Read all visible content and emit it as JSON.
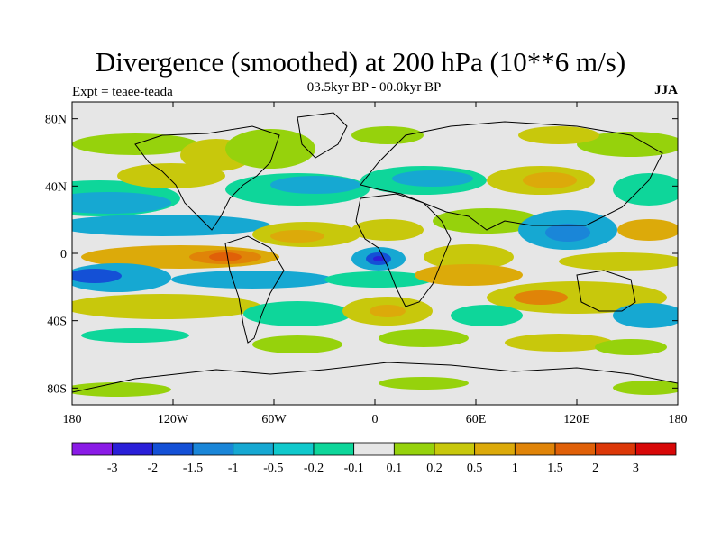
{
  "title": "Divergence (smoothed) at 200 hPa (10**6 m/s)",
  "subtitle": "03.5kyr BP - 00.0kyr BP",
  "experiment": "Expt = teaee-teada",
  "season": "JJA",
  "map": {
    "lat_labels": [
      "80N",
      "40N",
      "0",
      "40S",
      "80S"
    ],
    "lon_labels": [
      "180",
      "120W",
      "60W",
      "0",
      "60E",
      "120E",
      "180"
    ],
    "background_color": "#e6e6e6"
  },
  "colorbar": {
    "labels": [
      "-3",
      "-2",
      "-1.5",
      "-1",
      "-0.5",
      "-0.2",
      "-0.1",
      "0.1",
      "0.2",
      "0.5",
      "1",
      "1.5",
      "2",
      "3"
    ],
    "colors": [
      "#8a1be6",
      "#2a1fd8",
      "#1450d6",
      "#1a86d8",
      "#16a8d2",
      "#10c9cc",
      "#0ed69a",
      "#e6e6e6",
      "#96d20c",
      "#c8c80c",
      "#dcaa0a",
      "#e08408",
      "#e06008",
      "#dc3808",
      "#d80808"
    ]
  }
}
